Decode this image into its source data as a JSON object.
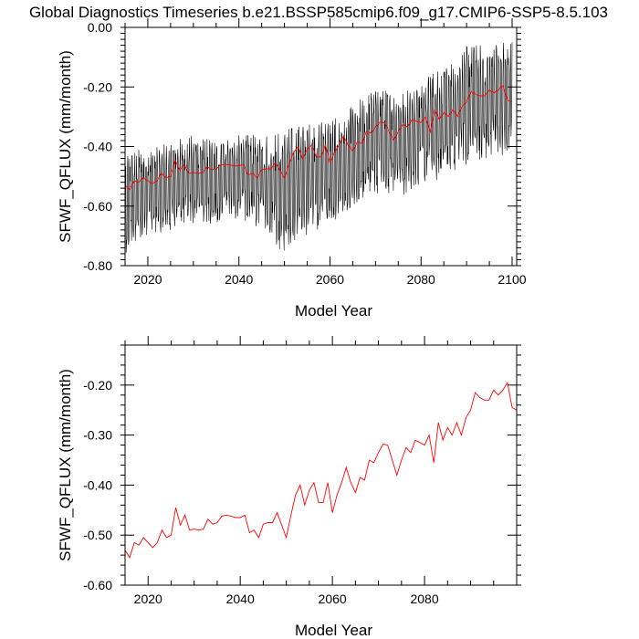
{
  "title": "Global Diagnostics Timeseries b.e21.BSSP585cmip6.f09_g17.CMIP6-SSP5-8.5.103",
  "colors": {
    "annual_mean": "#ff0000",
    "monthly": "#000000"
  },
  "chart_data": [
    {
      "type": "line",
      "xlabel": "Model Year",
      "ylabel": "SFWF_QFLUX (mm/month)",
      "xlim": [
        2015,
        2101
      ],
      "ylim": [
        -0.8,
        0.0
      ],
      "xticks": [
        2020,
        2040,
        2060,
        2080,
        2100
      ],
      "yticks": [
        -0.8,
        -0.6,
        -0.4,
        -0.2,
        0.0
      ],
      "yticklabels": [
        "-0.80",
        "-0.60",
        "-0.40",
        "-0.20",
        "0.00"
      ],
      "xticklabels": [
        "2020",
        "2040",
        "2060",
        "2080",
        "2100"
      ],
      "series": [
        {
          "kind": "monthly",
          "color": "#000000",
          "note": "monthly values oscillating approximately between trend-0.12 and trend+0.08, from about -0.43 to -0.78 at 2015 to about -0.05 to -0.45 at 2100",
          "x": [
            2015,
            2020,
            2025,
            2030,
            2035,
            2040,
            2045,
            2050,
            2055,
            2060,
            2065,
            2070,
            2075,
            2080,
            2085,
            2090,
            2095,
            2100
          ],
          "upper": [
            -0.42,
            -0.4,
            -0.38,
            -0.36,
            -0.38,
            -0.36,
            -0.36,
            -0.34,
            -0.32,
            -0.3,
            -0.26,
            -0.2,
            -0.22,
            -0.16,
            -0.14,
            -0.06,
            -0.05,
            -0.04
          ],
          "lower": [
            -0.76,
            -0.7,
            -0.68,
            -0.66,
            -0.66,
            -0.64,
            -0.68,
            -0.77,
            -0.7,
            -0.66,
            -0.6,
            -0.56,
            -0.58,
            -0.54,
            -0.52,
            -0.46,
            -0.44,
            -0.44
          ]
        },
        {
          "kind": "annual",
          "color": "#ff0000",
          "x": [
            2015,
            2016,
            2017,
            2018,
            2019,
            2020,
            2021,
            2022,
            2023,
            2024,
            2025,
            2026,
            2027,
            2028,
            2029,
            2030,
            2031,
            2032,
            2033,
            2034,
            2035,
            2036,
            2037,
            2038,
            2039,
            2040,
            2041,
            2042,
            2043,
            2044,
            2045,
            2046,
            2047,
            2048,
            2049,
            2050,
            2051,
            2052,
            2053,
            2054,
            2055,
            2056,
            2057,
            2058,
            2059,
            2060,
            2061,
            2062,
            2063,
            2064,
            2065,
            2066,
            2067,
            2068,
            2069,
            2070,
            2071,
            2072,
            2073,
            2074,
            2075,
            2076,
            2077,
            2078,
            2079,
            2080,
            2081,
            2082,
            2083,
            2084,
            2085,
            2086,
            2087,
            2088,
            2089,
            2090,
            2091,
            2092,
            2093,
            2094,
            2095,
            2096,
            2097,
            2098,
            2099,
            2100
          ],
          "values": [
            -0.53,
            -0.545,
            -0.515,
            -0.52,
            -0.505,
            -0.515,
            -0.525,
            -0.515,
            -0.49,
            -0.505,
            -0.5,
            -0.445,
            -0.48,
            -0.46,
            -0.49,
            -0.488,
            -0.49,
            -0.488,
            -0.468,
            -0.478,
            -0.475,
            -0.462,
            -0.46,
            -0.462,
            -0.465,
            -0.465,
            -0.46,
            -0.495,
            -0.49,
            -0.505,
            -0.478,
            -0.475,
            -0.475,
            -0.455,
            -0.48,
            -0.505,
            -0.46,
            -0.42,
            -0.4,
            -0.44,
            -0.41,
            -0.395,
            -0.435,
            -0.435,
            -0.395,
            -0.455,
            -0.42,
            -0.395,
            -0.365,
            -0.395,
            -0.415,
            -0.385,
            -0.39,
            -0.35,
            -0.355,
            -0.335,
            -0.318,
            -0.32,
            -0.35,
            -0.38,
            -0.35,
            -0.325,
            -0.335,
            -0.31,
            -0.315,
            -0.32,
            -0.3,
            -0.355,
            -0.275,
            -0.31,
            -0.285,
            -0.3,
            -0.275,
            -0.3,
            -0.265,
            -0.25,
            -0.215,
            -0.225,
            -0.23,
            -0.23,
            -0.21,
            -0.22,
            -0.21,
            -0.195,
            -0.245,
            -0.25
          ]
        }
      ]
    },
    {
      "type": "line",
      "xlabel": "Model Year",
      "ylabel": "SFWF_QFLUX (mm/month)",
      "xlim": [
        2015,
        2100
      ],
      "ylim": [
        -0.6,
        -0.12
      ],
      "xticks": [
        2020,
        2040,
        2060,
        2080
      ],
      "xticklabels": [
        "2020",
        "2040",
        "2060",
        "2080"
      ],
      "yticks": [
        -0.6,
        -0.5,
        -0.4,
        -0.3,
        -0.2
      ],
      "yticklabels": [
        "-0.60",
        "-0.50",
        "-0.40",
        "-0.30",
        "-0.20"
      ],
      "series": [
        {
          "kind": "annual",
          "color": "#ff0000",
          "x": [
            2015,
            2016,
            2017,
            2018,
            2019,
            2020,
            2021,
            2022,
            2023,
            2024,
            2025,
            2026,
            2027,
            2028,
            2029,
            2030,
            2031,
            2032,
            2033,
            2034,
            2035,
            2036,
            2037,
            2038,
            2039,
            2040,
            2041,
            2042,
            2043,
            2044,
            2045,
            2046,
            2047,
            2048,
            2049,
            2050,
            2051,
            2052,
            2053,
            2054,
            2055,
            2056,
            2057,
            2058,
            2059,
            2060,
            2061,
            2062,
            2063,
            2064,
            2065,
            2066,
            2067,
            2068,
            2069,
            2070,
            2071,
            2072,
            2073,
            2074,
            2075,
            2076,
            2077,
            2078,
            2079,
            2080,
            2081,
            2082,
            2083,
            2084,
            2085,
            2086,
            2087,
            2088,
            2089,
            2090,
            2091,
            2092,
            2093,
            2094,
            2095,
            2096,
            2097,
            2098,
            2099,
            2100
          ],
          "values": [
            -0.53,
            -0.545,
            -0.515,
            -0.52,
            -0.505,
            -0.515,
            -0.525,
            -0.515,
            -0.49,
            -0.505,
            -0.5,
            -0.445,
            -0.48,
            -0.46,
            -0.49,
            -0.488,
            -0.49,
            -0.488,
            -0.468,
            -0.478,
            -0.475,
            -0.462,
            -0.46,
            -0.462,
            -0.465,
            -0.465,
            -0.46,
            -0.495,
            -0.49,
            -0.505,
            -0.478,
            -0.475,
            -0.475,
            -0.455,
            -0.48,
            -0.505,
            -0.46,
            -0.42,
            -0.4,
            -0.44,
            -0.41,
            -0.395,
            -0.435,
            -0.435,
            -0.395,
            -0.455,
            -0.42,
            -0.395,
            -0.365,
            -0.395,
            -0.415,
            -0.385,
            -0.39,
            -0.35,
            -0.355,
            -0.335,
            -0.318,
            -0.32,
            -0.35,
            -0.38,
            -0.35,
            -0.325,
            -0.335,
            -0.31,
            -0.315,
            -0.32,
            -0.3,
            -0.355,
            -0.275,
            -0.31,
            -0.285,
            -0.3,
            -0.275,
            -0.3,
            -0.265,
            -0.25,
            -0.215,
            -0.225,
            -0.23,
            -0.23,
            -0.21,
            -0.22,
            -0.21,
            -0.195,
            -0.245,
            -0.25
          ]
        }
      ]
    }
  ]
}
